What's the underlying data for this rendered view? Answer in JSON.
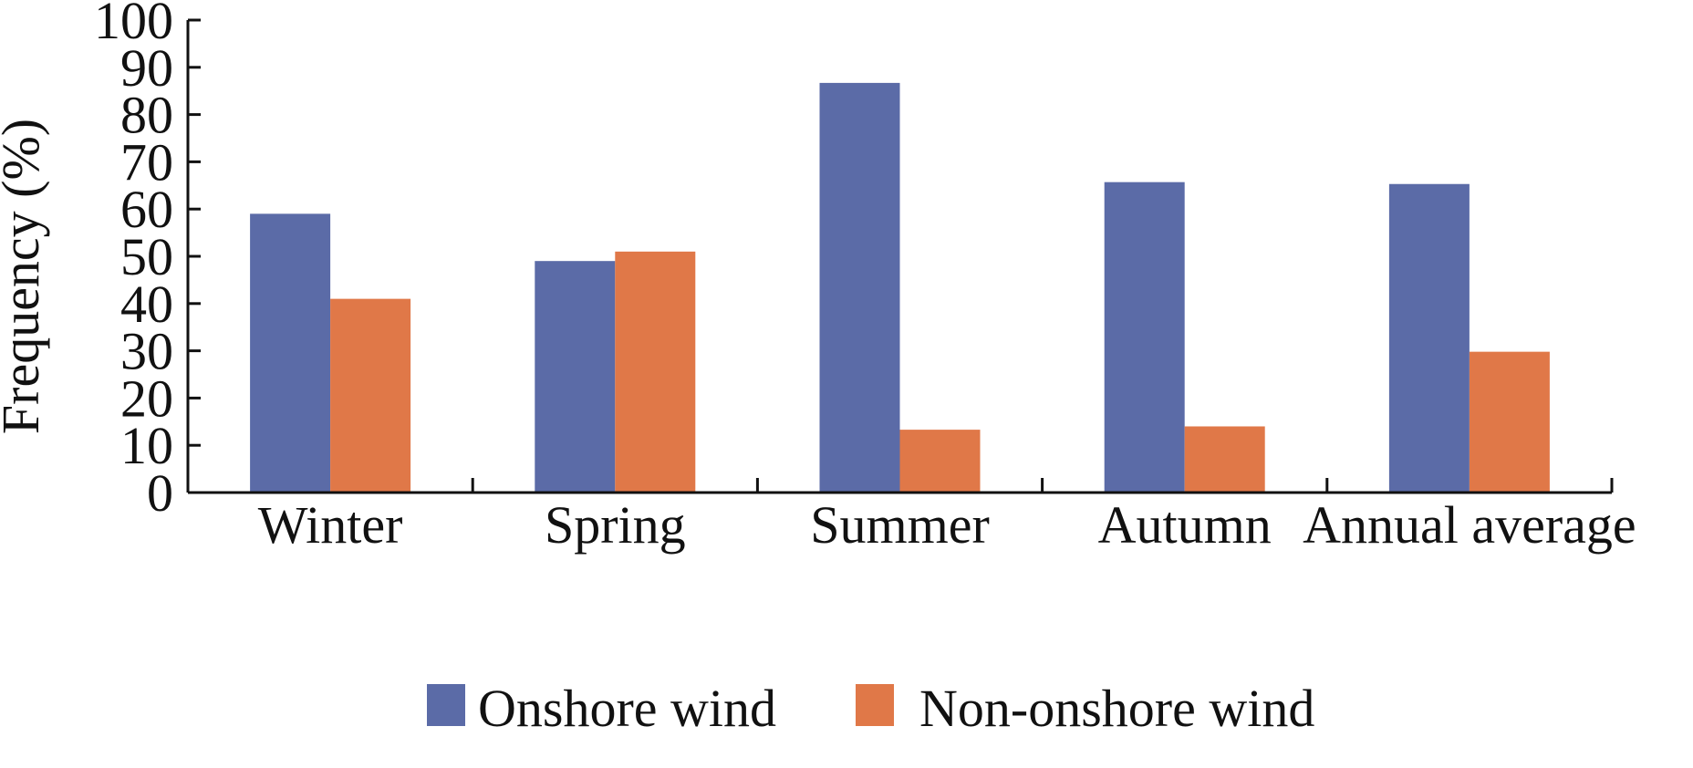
{
  "chart_data": {
    "type": "bar",
    "categories": [
      "Winter",
      "Spring",
      "Summer",
      "Autumn",
      "Annual average"
    ],
    "series": [
      {
        "name": "Onshore wind",
        "color": "#5b6ba7",
        "values": [
          59,
          49,
          86.7,
          65.7,
          65.3
        ]
      },
      {
        "name": "Non-onshore wind",
        "color": "#e07848",
        "values": [
          41,
          51,
          13.3,
          14,
          29.8
        ]
      }
    ],
    "title": "",
    "xlabel": "",
    "ylabel": "Frequency (%)",
    "ylim": [
      0,
      100
    ],
    "yticks": [
      "0",
      "10",
      "20",
      "30",
      "40",
      "50",
      "60",
      "70",
      "80",
      "90",
      "100"
    ],
    "grid": false,
    "legend_position": "bottom"
  }
}
